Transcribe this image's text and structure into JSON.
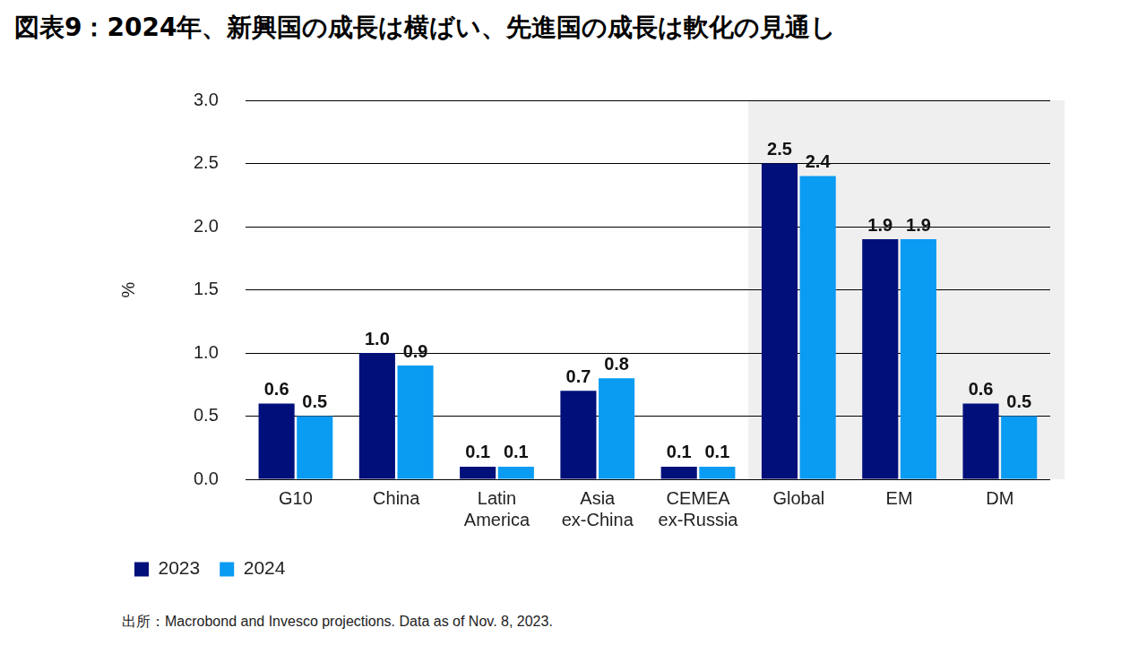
{
  "chart_data": {
    "type": "bar",
    "title": "図表9：2024年、新興国の成長は横ばい、先進国の成長は軟化の見通し",
    "source": "出所：Macrobond and Invesco projections. Data as of Nov. 8, 2023.",
    "y_label": "%",
    "categories": [
      "G10",
      "China",
      "Latin America",
      "Asia ex-China",
      "CEMEA ex-Russia",
      "Global",
      "EM",
      "DM"
    ],
    "series": [
      {
        "name": "2023",
        "color": "#000f7a",
        "values": [
          0.6,
          1.0,
          0.1,
          0.7,
          0.1,
          2.5,
          1.9,
          0.6
        ],
        "value_labels": [
          "0.6",
          "1.0",
          "0.1",
          "0.7",
          "0.1",
          "2.5",
          "1.9",
          "0.6"
        ]
      },
      {
        "name": "2024",
        "color": "#0a9bf2",
        "values": [
          0.5,
          0.9,
          0.1,
          0.8,
          0.1,
          2.4,
          1.9,
          0.5
        ],
        "value_labels": [
          "0.5",
          "0.9",
          "0.1",
          "0.8",
          "0.1",
          "2.4",
          "1.9",
          "0.5"
        ]
      }
    ],
    "ylim": [
      0,
      3
    ],
    "yticks": [
      {
        "value": 0,
        "label": "0.0"
      },
      0.5,
      {
        "value": 1,
        "label": "1.0"
      },
      1.5,
      {
        "value": 2,
        "label": "2.0"
      },
      2.5,
      {
        "value": 3,
        "label": "3.0"
      }
    ],
    "grid": true,
    "legend": "bottom-left",
    "data_labels": true
  }
}
